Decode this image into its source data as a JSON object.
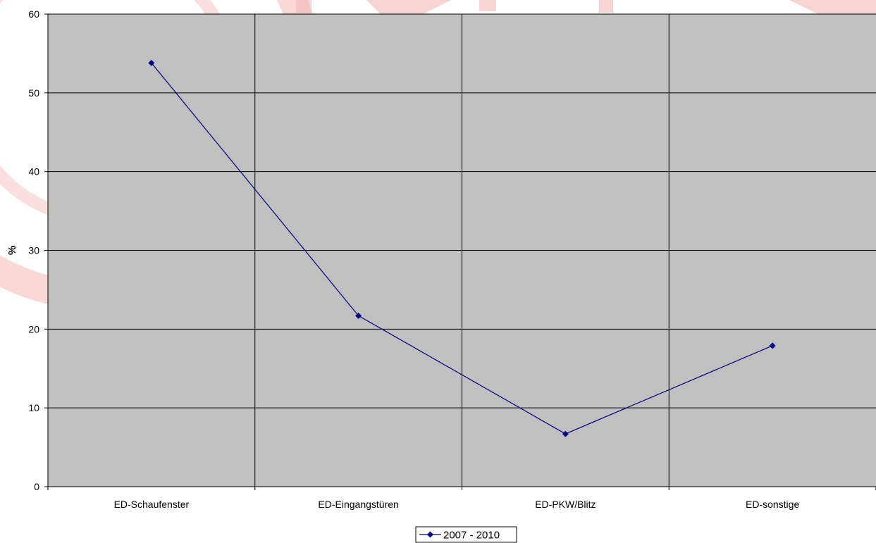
{
  "chart_data": {
    "type": "line",
    "title": "",
    "xlabel": "",
    "ylabel": "%",
    "categories": [
      "ED-Schaufenster",
      "ED-Eingangstüren",
      "ED-PKW/Blitz",
      "ED-sonstige"
    ],
    "series": [
      {
        "name": "2007 - 2010",
        "values": [
          53.8,
          21.7,
          6.7,
          17.9
        ]
      }
    ],
    "ylim": [
      0,
      60
    ],
    "yticks": [
      0,
      10,
      20,
      30,
      40,
      50,
      60
    ],
    "grid": true,
    "legend": "bottom-center",
    "colors": {
      "plot_bg": "#C0C0C0",
      "series": "#000080",
      "grid": "#000000",
      "watermark": "#F2B8B8"
    }
  }
}
